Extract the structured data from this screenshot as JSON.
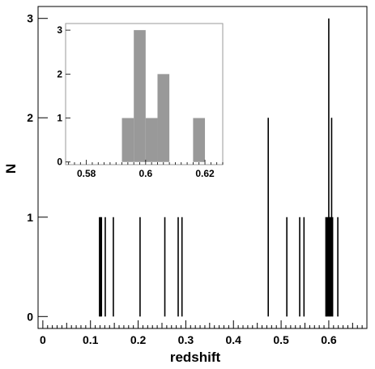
{
  "chart_data": [
    {
      "type": "bar",
      "role": "main-histogram",
      "xlabel": "redshift",
      "ylabel": "N",
      "xlim": [
        -0.01,
        0.68
      ],
      "ylim": [
        -0.12,
        3.12
      ],
      "x_ticks": [
        0,
        0.1,
        0.2,
        0.3,
        0.4,
        0.5,
        0.6
      ],
      "x_tick_labels": [
        "0",
        "0.1",
        "0.2",
        "0.3",
        "0.4",
        "0.5",
        "0.6"
      ],
      "y_ticks": [
        0,
        1,
        2,
        3
      ],
      "y_tick_labels": [
        "0",
        "1",
        "2",
        "3"
      ],
      "grid": false,
      "bar_color": "#000000",
      "bins": [
        {
          "x": 0.119,
          "count": 1
        },
        {
          "x": 0.121,
          "count": 1
        },
        {
          "x": 0.123,
          "count": 1
        },
        {
          "x": 0.131,
          "count": 1
        },
        {
          "x": 0.148,
          "count": 1
        },
        {
          "x": 0.204,
          "count": 1
        },
        {
          "x": 0.256,
          "count": 1
        },
        {
          "x": 0.284,
          "count": 1
        },
        {
          "x": 0.292,
          "count": 1
        },
        {
          "x": 0.473,
          "count": 2
        },
        {
          "x": 0.512,
          "count": 1
        },
        {
          "x": 0.539,
          "count": 1
        },
        {
          "x": 0.548,
          "count": 1
        },
        {
          "x": 0.594,
          "count": 1
        },
        {
          "x": 0.596,
          "count": 1
        },
        {
          "x": 0.598,
          "count": 1
        },
        {
          "x": 0.6,
          "count": 3
        },
        {
          "x": 0.602,
          "count": 1
        },
        {
          "x": 0.604,
          "count": 1
        },
        {
          "x": 0.606,
          "count": 2
        },
        {
          "x": 0.608,
          "count": 1
        },
        {
          "x": 0.619,
          "count": 1
        }
      ]
    },
    {
      "type": "bar",
      "role": "inset-histogram",
      "xlim": [
        0.573,
        0.626
      ],
      "ylim": [
        -0.06,
        3.15
      ],
      "x_ticks": [
        0.58,
        0.6,
        0.62
      ],
      "x_tick_labels": [
        "0.58",
        "0.6",
        "0.62"
      ],
      "y_ticks": [
        0,
        1,
        2,
        3
      ],
      "y_tick_labels": [
        "0",
        "1",
        "2",
        "3"
      ],
      "grid": false,
      "bar_color": "#999999",
      "bins": [
        {
          "x0": 0.592,
          "x1": 0.596,
          "count": 1
        },
        {
          "x0": 0.596,
          "x1": 0.6,
          "count": 3
        },
        {
          "x0": 0.6,
          "x1": 0.604,
          "count": 1
        },
        {
          "x0": 0.604,
          "x1": 0.608,
          "count": 2
        },
        {
          "x0": 0.616,
          "x1": 0.62,
          "count": 1
        }
      ]
    }
  ]
}
